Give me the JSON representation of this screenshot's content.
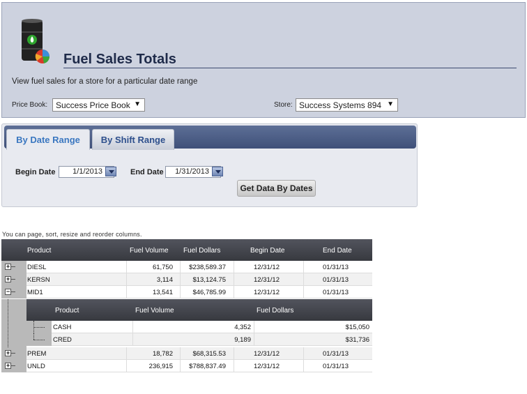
{
  "header": {
    "title": "Fuel Sales Totals",
    "description": "View fuel sales for a store for a particular date range",
    "price_book_label": "Price Book:",
    "price_book_value": "Success Price Book",
    "store_label": "Store:",
    "store_value": "Success Systems 894",
    "logo_icon": "fuel-barrel-icon"
  },
  "tabs": [
    {
      "label": "By Date Range",
      "active": true
    },
    {
      "label": "By Shift Range",
      "active": false
    }
  ],
  "date_form": {
    "begin_label": "Begin Date",
    "begin_value": "1/1/2013",
    "end_label": "End Date",
    "end_value": "1/31/2013",
    "submit_label": "Get Data By Dates"
  },
  "grid": {
    "hint": "You can page, sort, resize and reorder columns.",
    "columns": [
      "Product",
      "Fuel Volume",
      "Fuel Dollars",
      "Begin Date",
      "End Date"
    ],
    "rows": [
      {
        "product": "DIESL",
        "volume": "61,750",
        "dollars": "$238,589.37",
        "begin": "12/31/12",
        "end": "01/31/13",
        "toggle": "+"
      },
      {
        "product": "KERSN",
        "volume": "3,114",
        "dollars": "$13,124.75",
        "begin": "12/31/12",
        "end": "01/31/13",
        "toggle": "+"
      },
      {
        "product": "MID1",
        "volume": "13,541",
        "dollars": "$46,785.99",
        "begin": "12/31/12",
        "end": "01/31/13",
        "toggle": "−"
      },
      {
        "product": "PREM",
        "volume": "18,782",
        "dollars": "$68,315.53",
        "begin": "12/31/12",
        "end": "01/31/13",
        "toggle": "+"
      },
      {
        "product": "UNLD",
        "volume": "236,915",
        "dollars": "$788,837.49",
        "begin": "12/31/12",
        "end": "01/31/13",
        "toggle": "+"
      }
    ],
    "detail": {
      "columns": [
        "Product",
        "Fuel Volume",
        "Fuel Dollars"
      ],
      "rows": [
        {
          "product": "CASH",
          "volume": "4,352",
          "dollars": "$15,050"
        },
        {
          "product": "CRED",
          "volume": "9,189",
          "dollars": "$31,736"
        }
      ]
    }
  }
}
